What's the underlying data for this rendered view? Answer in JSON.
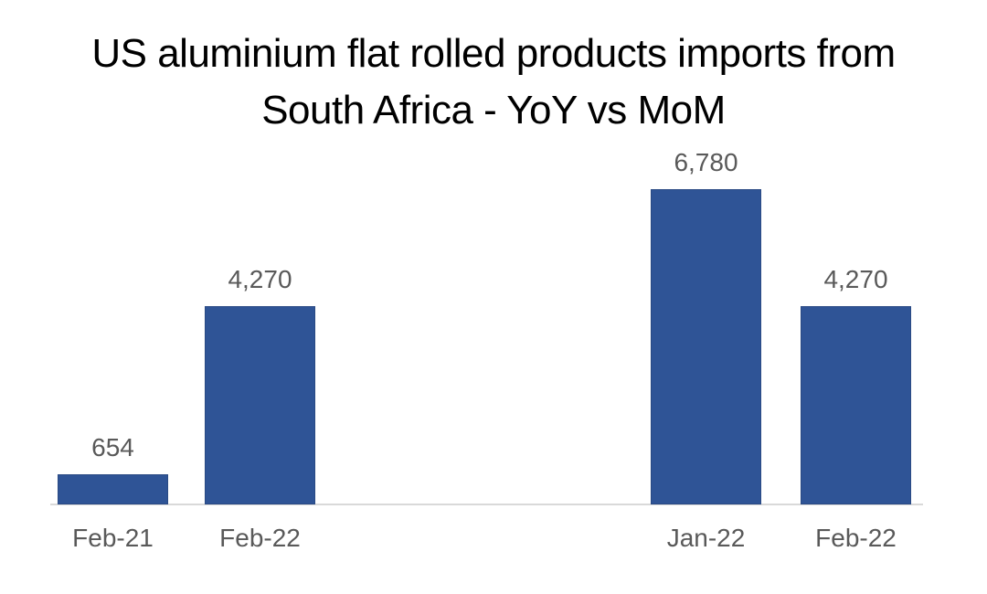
{
  "title": {
    "line1": "US aluminium flat rolled products imports from",
    "line2": "South Africa - YoY vs MoM"
  },
  "chart_data": {
    "type": "bar",
    "title": "US aluminium flat rolled products imports from South Africa - YoY vs MoM",
    "categories": [
      "Feb-21",
      "Feb-22",
      "Jan-22",
      "Feb-22"
    ],
    "values": [
      654,
      4270,
      6780,
      4270
    ],
    "data_labels": [
      "654",
      "4,270",
      "6,780",
      "4,270"
    ],
    "clusters": [
      {
        "comparison": "YoY",
        "category_indices": [
          0,
          1
        ]
      },
      {
        "comparison": "MoM",
        "category_indices": [
          2,
          3
        ]
      }
    ],
    "xlabel": "",
    "ylabel": "",
    "ylim": [
      0,
      6780
    ],
    "grid": false,
    "legend": false,
    "y_axis_visible": false,
    "data_label_position": "above-bar",
    "colors": {
      "bar_fill": "#2F5496",
      "bar_border": "#2A4A84",
      "labels": "#595959",
      "axis_line": "#D9D9D9",
      "title": "#000000",
      "background": "#FFFFFF"
    }
  }
}
